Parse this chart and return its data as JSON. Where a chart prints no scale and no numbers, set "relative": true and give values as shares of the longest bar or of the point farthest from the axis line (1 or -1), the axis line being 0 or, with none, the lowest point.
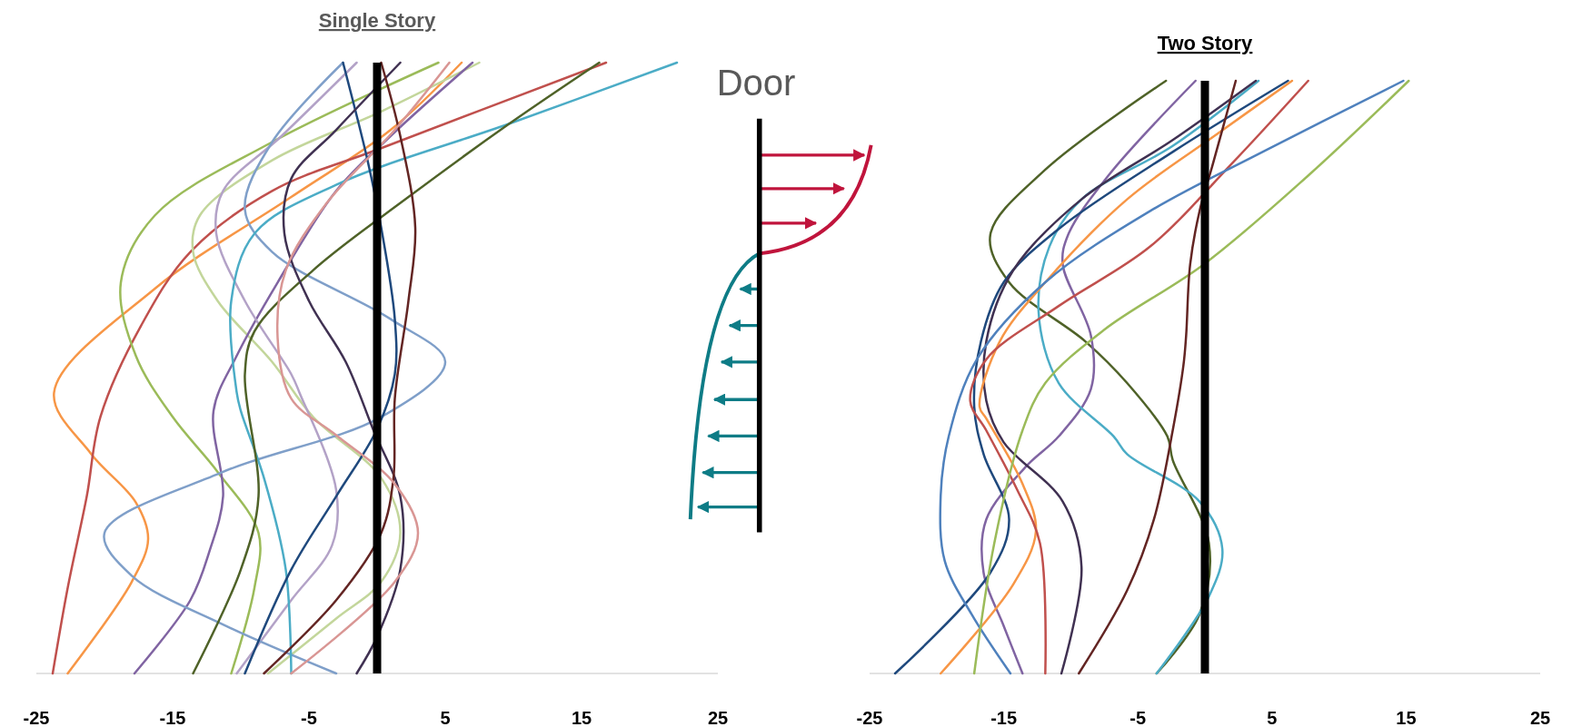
{
  "chart_data": [
    {
      "type": "line",
      "title": "Single Story",
      "relative": true,
      "xlim": [
        -25,
        25
      ],
      "xticks": [
        -25,
        -15,
        -5,
        5,
        15,
        25
      ],
      "ref_lines": [
        {
          "axis": "x",
          "value": 0,
          "color": "#000000"
        }
      ],
      "series": [
        {
          "color": "#f79646",
          "x": [
            6.2,
            1,
            -6.3,
            -16.3,
            -23.7,
            -21,
            -17.7,
            -16.8,
            -18,
            -22.7
          ],
          "values": [
            1,
            0.89,
            0.78,
            0.63,
            0.46,
            0.36,
            0.28,
            0.22,
            0.15,
            0
          ]
        },
        {
          "color": "#c0504d",
          "x": [
            16.8,
            0.3,
            -7.7,
            -13.7,
            -17.3,
            -20.3,
            -21.3,
            -22.7,
            -23.8
          ],
          "values": [
            1,
            0.86,
            0.79,
            0.69,
            0.57,
            0.42,
            0.29,
            0.14,
            0
          ]
        },
        {
          "color": "#9bbb59",
          "x": [
            4.5,
            -7.7,
            -16.3,
            -18.8,
            -17.7,
            -15,
            -11.7,
            -8.7,
            -9,
            -10.7
          ],
          "values": [
            1,
            0.87,
            0.75,
            0.64,
            0.52,
            0.42,
            0.33,
            0.23,
            0.14,
            0
          ]
        },
        {
          "color": "#c3d69b",
          "x": [
            7.5,
            0.3,
            -7.7,
            -13,
            -13.5,
            -11.7,
            -7.7,
            -4.7,
            0.3,
            1.7,
            0.3,
            -3,
            -8
          ],
          "values": [
            1,
            0.92,
            0.84,
            0.75,
            0.69,
            0.61,
            0.51,
            0.42,
            0.32,
            0.23,
            0.15,
            0.09,
            0
          ]
        },
        {
          "color": "#8064a2",
          "x": [
            7,
            1,
            -3,
            -7.3,
            -10.3,
            -12,
            -11.3,
            -12.3,
            -13.7,
            -17.8
          ],
          "values": [
            1,
            0.88,
            0.79,
            0.64,
            0.52,
            0.43,
            0.29,
            0.2,
            0.12,
            0
          ]
        },
        {
          "color": "#b3a2c7",
          "x": [
            -1.5,
            -7,
            -11.3,
            -11.8,
            -9.7,
            -6.3,
            -5.7,
            -3,
            -3.3,
            -6.3,
            -10.3
          ],
          "values": [
            1,
            0.88,
            0.79,
            0.72,
            0.61,
            0.49,
            0.46,
            0.3,
            0.21,
            0.12,
            0
          ]
        },
        {
          "color": "#7f9fc9",
          "x": [
            -2.5,
            -7.7,
            -9.7,
            -7.7,
            1,
            5,
            0.3,
            -11.3,
            -20,
            -18,
            -11.3,
            -3
          ],
          "values": [
            1,
            0.87,
            0.76,
            0.69,
            0.58,
            0.51,
            0.42,
            0.33,
            0.23,
            0.16,
            0.08,
            0
          ]
        },
        {
          "color": "#4bacc6",
          "x": [
            22,
            9.7,
            -3,
            -9,
            -10.7,
            -10.3,
            -10,
            -8.3,
            -6.7,
            -6.3
          ],
          "values": [
            1,
            0.9,
            0.8,
            0.72,
            0.61,
            0.46,
            0.43,
            0.32,
            0.17,
            0
          ]
        },
        {
          "color": "#4f6228",
          "x": [
            16.3,
            9.7,
            2.3,
            -4.7,
            -9,
            -9.7,
            -8.7,
            -10,
            -13.5
          ],
          "values": [
            1,
            0.9,
            0.78,
            0.66,
            0.56,
            0.49,
            0.29,
            0.17,
            0
          ]
        },
        {
          "color": "#1f497d",
          "x": [
            -2.5,
            -0.7,
            0.3,
            1.3,
            1.3,
            0,
            -3,
            -6.3,
            -9.7
          ],
          "values": [
            1,
            0.84,
            0.73,
            0.58,
            0.49,
            0.4,
            0.29,
            0.17,
            0
          ]
        },
        {
          "color": "#403152",
          "x": [
            1.7,
            -3,
            -6.3,
            -6.8,
            -5,
            -2.3,
            -0.3,
            1.7,
            1.7,
            0,
            -1.5
          ],
          "values": [
            1,
            0.89,
            0.81,
            0.72,
            0.61,
            0.51,
            0.4,
            0.29,
            0.17,
            0.06,
            0
          ]
        },
        {
          "color": "#632523",
          "x": [
            0.3,
            1.7,
            2.8,
            2.3,
            1.3,
            1.2,
            0.3,
            -3,
            -8.3
          ],
          "values": [
            1,
            0.88,
            0.73,
            0.61,
            0.45,
            0.32,
            0.23,
            0.12,
            0
          ]
        },
        {
          "color": "#d99694",
          "x": [
            5.3,
            1.3,
            -3.7,
            -6.7,
            -7.3,
            -6.3,
            -3,
            1.3,
            3,
            1.3,
            -6.3
          ],
          "values": [
            1,
            0.89,
            0.77,
            0.66,
            0.55,
            0.45,
            0.39,
            0.31,
            0.23,
            0.15,
            0
          ]
        }
      ]
    },
    {
      "type": "other",
      "title": "Door"
    },
    {
      "type": "line",
      "title": "Two Story",
      "relative": true,
      "xlim": [
        -25,
        25
      ],
      "xticks": [
        -25,
        -15,
        -5,
        5,
        15,
        25
      ],
      "ref_lines": [
        {
          "axis": "x",
          "value": 0,
          "color": "#000000"
        }
      ],
      "series": [
        {
          "color": "#4f6228",
          "x": [
            -2.9,
            -11.9,
            -16,
            -14.6,
            -8.9,
            -5.8,
            -2.8,
            -2.4,
            0.3,
            -0.4,
            -3.6
          ],
          "values": [
            1,
            0.85,
            0.74,
            0.66,
            0.56,
            0.49,
            0.4,
            0.36,
            0.22,
            0.1,
            0
          ]
        },
        {
          "color": "#8064a2",
          "x": [
            -0.7,
            -7.2,
            -10.2,
            -10.6,
            -8.5,
            -8.5,
            -10.9,
            -13.3,
            -16.3,
            -16.5,
            -15,
            -13.6
          ],
          "values": [
            1,
            0.84,
            0.74,
            0.69,
            0.57,
            0.48,
            0.4,
            0.35,
            0.26,
            0.17,
            0.08,
            0
          ]
        },
        {
          "color": "#4bacc6",
          "x": [
            4,
            -2.4,
            -9.2,
            -11.6,
            -12.4,
            -10.9,
            -6.8,
            -5.8,
            -0.4,
            1.3,
            0.3,
            -3.6
          ],
          "values": [
            1,
            0.89,
            0.8,
            0.72,
            0.61,
            0.49,
            0.4,
            0.37,
            0.29,
            0.21,
            0.13,
            0
          ]
        },
        {
          "color": "#1f497d",
          "x": [
            6.2,
            -2.4,
            -10.9,
            -15,
            -16.7,
            -17.2,
            -16.5,
            -14.6,
            -16,
            -23.1
          ],
          "values": [
            1,
            0.88,
            0.75,
            0.66,
            0.56,
            0.45,
            0.37,
            0.26,
            0.17,
            0
          ]
        },
        {
          "color": "#403152",
          "x": [
            3.8,
            -2.4,
            -9.2,
            -14.3,
            -16.3,
            -16.3,
            -15,
            -10.6,
            -9.2,
            -10.7
          ],
          "values": [
            1,
            0.9,
            0.8,
            0.68,
            0.56,
            0.46,
            0.39,
            0.29,
            0.18,
            0
          ]
        },
        {
          "color": "#f79646",
          "x": [
            6.5,
            0.9,
            -5.8,
            -11.9,
            -15.3,
            -16.8,
            -16.3,
            -13.6,
            -12.6,
            -14.3,
            -19.7
          ],
          "values": [
            1,
            0.91,
            0.8,
            0.66,
            0.56,
            0.45,
            0.43,
            0.32,
            0.24,
            0.15,
            0
          ]
        },
        {
          "color": "#c0504d",
          "x": [
            7.7,
            2,
            -4.1,
            -10.9,
            -16.3,
            -17.5,
            -16.3,
            -14,
            -12.3,
            -11.9
          ],
          "values": [
            1,
            0.86,
            0.72,
            0.62,
            0.53,
            0.46,
            0.41,
            0.31,
            0.22,
            0
          ]
        },
        {
          "color": "#4f81bd",
          "x": [
            14.8,
            4.3,
            -4.1,
            -11.9,
            -17,
            -19.1,
            -19.7,
            -19.4,
            -17.4,
            -14.5
          ],
          "values": [
            1,
            0.88,
            0.78,
            0.66,
            0.53,
            0.4,
            0.3,
            0.19,
            0.1,
            0
          ]
        },
        {
          "color": "#9bbb59",
          "x": [
            15.2,
            7.7,
            -0.1,
            -7.5,
            -11.9,
            -13.6,
            -15.7,
            -17.2
          ],
          "values": [
            1,
            0.84,
            0.69,
            0.58,
            0.49,
            0.41,
            0.22,
            0
          ]
        },
        {
          "color": "#632523",
          "x": [
            2.3,
            0.6,
            -0.4,
            -1.1,
            -1.4,
            -1.6,
            -2.4,
            -3.8,
            -5.8,
            -9.4
          ],
          "values": [
            1,
            0.86,
            0.78,
            0.69,
            0.57,
            0.52,
            0.41,
            0.26,
            0.14,
            0
          ]
        }
      ]
    }
  ]
}
